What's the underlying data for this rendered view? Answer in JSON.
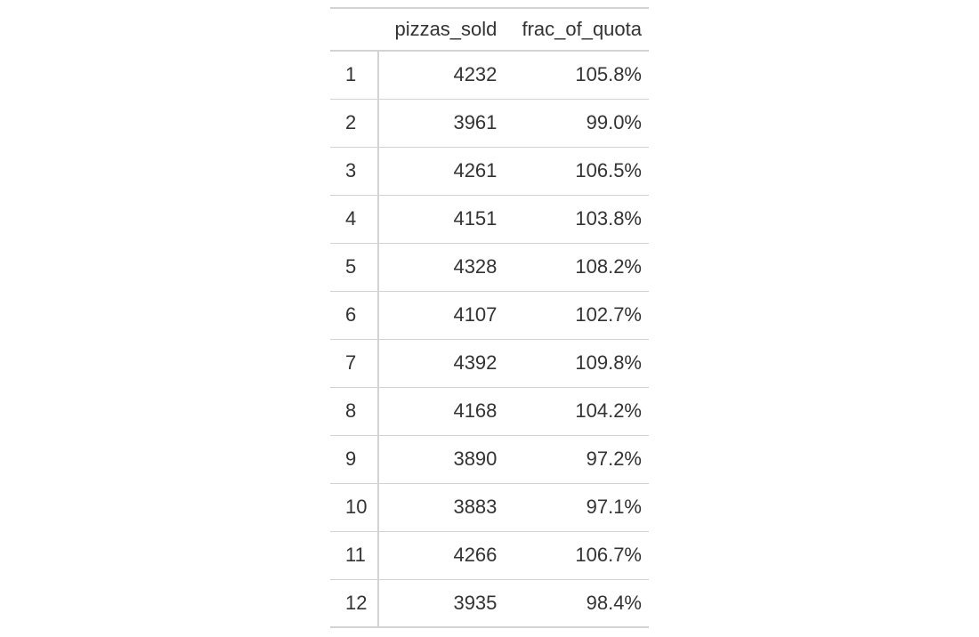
{
  "table": {
    "columns": [
      {
        "key": "stub",
        "label": ""
      },
      {
        "key": "pizzas_sold",
        "label": "pizzas_sold"
      },
      {
        "key": "frac_of_quota",
        "label": "frac_of_quota"
      }
    ],
    "rows": [
      {
        "id": "1",
        "pizzas_sold": "4232",
        "frac_of_quota": "105.8%"
      },
      {
        "id": "2",
        "pizzas_sold": "3961",
        "frac_of_quota": "99.0%"
      },
      {
        "id": "3",
        "pizzas_sold": "4261",
        "frac_of_quota": "106.5%"
      },
      {
        "id": "4",
        "pizzas_sold": "4151",
        "frac_of_quota": "103.8%"
      },
      {
        "id": "5",
        "pizzas_sold": "4328",
        "frac_of_quota": "108.2%"
      },
      {
        "id": "6",
        "pizzas_sold": "4107",
        "frac_of_quota": "102.7%"
      },
      {
        "id": "7",
        "pizzas_sold": "4392",
        "frac_of_quota": "109.8%"
      },
      {
        "id": "8",
        "pizzas_sold": "4168",
        "frac_of_quota": "104.2%"
      },
      {
        "id": "9",
        "pizzas_sold": "3890",
        "frac_of_quota": "97.2%"
      },
      {
        "id": "10",
        "pizzas_sold": "3883",
        "frac_of_quota": "97.1%"
      },
      {
        "id": "11",
        "pizzas_sold": "4266",
        "frac_of_quota": "106.7%"
      },
      {
        "id": "12",
        "pizzas_sold": "3935",
        "frac_of_quota": "98.4%"
      }
    ]
  },
  "colors": {
    "text": "#333333",
    "rule": "#d3d3d3",
    "background": "#ffffff"
  }
}
